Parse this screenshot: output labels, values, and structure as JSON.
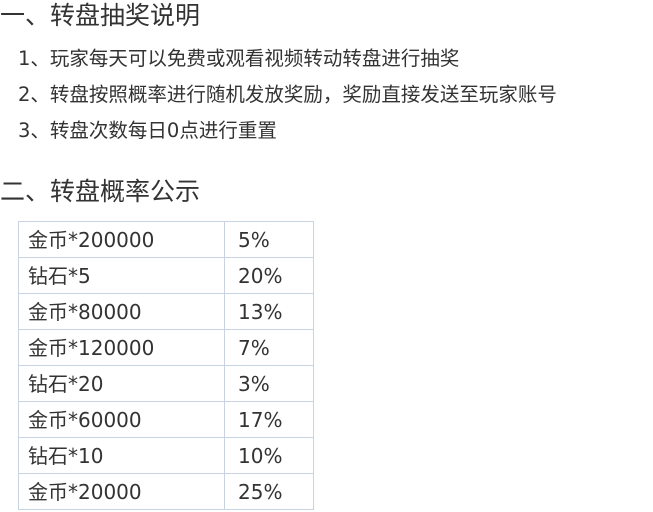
{
  "section1": {
    "title": "一、转盘抽奖说明",
    "rules": [
      "1、玩家每天可以免费或观看视频转动转盘进行抽奖",
      "2、转盘按照概率进行随机发放奖励，奖励直接发送至玩家账号",
      "3、转盘次数每日0点进行重置"
    ]
  },
  "section2": {
    "title": "二、转盘概率公示",
    "rows": [
      {
        "prize": "金币*200000",
        "rate": "5%"
      },
      {
        "prize": "钻石*5",
        "rate": "20%"
      },
      {
        "prize": "金币*80000",
        "rate": "13%"
      },
      {
        "prize": "金币*120000",
        "rate": "7%"
      },
      {
        "prize": "钻石*20",
        "rate": "3%"
      },
      {
        "prize": "金币*60000",
        "rate": "17%"
      },
      {
        "prize": "钻石*10",
        "rate": "10%"
      },
      {
        "prize": "金币*20000",
        "rate": "25%"
      }
    ]
  }
}
